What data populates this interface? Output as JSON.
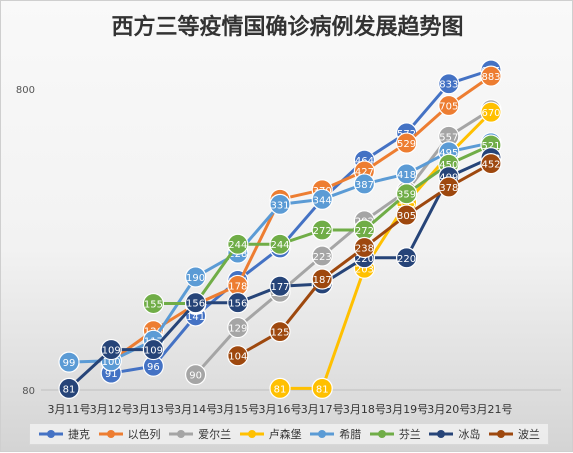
{
  "chart_data": {
    "type": "line",
    "title": "西方三等疫情国确诊病例发展趋势图",
    "xlabel": "",
    "ylabel": "",
    "y_scale": "log",
    "ylim": [
      80,
      1000
    ],
    "y_ticks": [
      80,
      800
    ],
    "grid": false,
    "legend_position": "bottom",
    "categories": [
      "3月11号",
      "3月12号",
      "3月13号",
      "3月14号",
      "3月15号",
      "3月16号",
      "3月17号",
      "3月18号",
      "3月19号",
      "3月20号",
      "3月21号"
    ],
    "series": [
      {
        "name": "捷克",
        "color": "#4472c4",
        "values": [
          null,
          91,
          96,
          141,
          185,
          237,
          344,
          464,
          572,
          833,
          925
        ]
      },
      {
        "name": "以色列",
        "color": "#ed7d31",
        "values": [
          null,
          100,
          126,
          154,
          178,
          344,
          370,
          427,
          529,
          705,
          883
        ]
      },
      {
        "name": "爱尔兰",
        "color": "#a5a5a5",
        "values": [
          null,
          null,
          null,
          90,
          129,
          169,
          223,
          292,
          366,
          557,
          683
        ]
      },
      {
        "name": "卢森堡",
        "color": "#ffc000",
        "values": [
          null,
          null,
          null,
          null,
          null,
          81,
          81,
          203,
          335,
          484,
          670
        ]
      },
      {
        "name": "希腊",
        "color": "#5b9bd5",
        "values": [
          99,
          100,
          117,
          190,
          228,
          331,
          344,
          387,
          418,
          495,
          530
        ]
      },
      {
        "name": "芬兰",
        "color": "#70ad47",
        "values": [
          null,
          null,
          155,
          155,
          244,
          244,
          272,
          272,
          359,
          450,
          521
        ]
      },
      {
        "name": "冰岛",
        "color": "#264478",
        "values": [
          81,
          109,
          109,
          156,
          156,
          177,
          180,
          220,
          220,
          409,
          473
        ]
      },
      {
        "name": "波兰",
        "color": "#9e480e",
        "values": [
          null,
          null,
          null,
          null,
          104,
          125,
          187,
          238,
          305,
          378,
          452
        ]
      }
    ]
  }
}
